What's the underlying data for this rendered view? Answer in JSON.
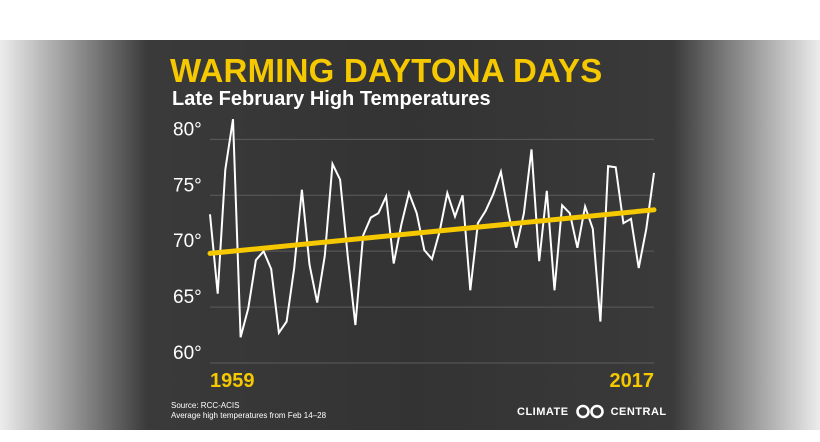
{
  "chart_data": {
    "type": "line",
    "title": "WARMING DAYTONA DAYS",
    "subtitle": "Late February High Temperatures",
    "xlabel": "",
    "ylabel": "",
    "x_start_label": "1959",
    "x_end_label": "2017",
    "xlim": [
      1959,
      2017
    ],
    "ylim": [
      60,
      82
    ],
    "yticks": [
      80,
      75,
      70,
      65,
      60
    ],
    "ytick_labels": [
      "80°",
      "75°",
      "70°",
      "65°",
      "60°"
    ],
    "grid": true,
    "series": [
      {
        "name": "Average high temperature",
        "color": "#ffffff",
        "x": [
          1959,
          1960,
          1961,
          1962,
          1963,
          1964,
          1965,
          1966,
          1967,
          1968,
          1969,
          1970,
          1971,
          1972,
          1973,
          1974,
          1975,
          1976,
          1977,
          1978,
          1979,
          1980,
          1981,
          1982,
          1983,
          1984,
          1985,
          1986,
          1987,
          1988,
          1989,
          1990,
          1991,
          1992,
          1993,
          1994,
          1995,
          1996,
          1997,
          1998,
          1999,
          2000,
          2001,
          2002,
          2003,
          2004,
          2005,
          2006,
          2007,
          2008,
          2009,
          2010,
          2011,
          2012,
          2013,
          2014,
          2015,
          2016,
          2017
        ],
        "values": [
          73.3,
          66.2,
          77.3,
          81.8,
          62.3,
          64.9,
          69.2,
          70.0,
          68.4,
          62.7,
          63.7,
          68.5,
          75.5,
          68.8,
          65.4,
          69.6,
          77.8,
          76.4,
          69.5,
          63.4,
          71.4,
          73.0,
          73.4,
          74.9,
          68.9,
          72.4,
          75.2,
          73.4,
          70.1,
          69.3,
          71.8,
          75.2,
          73.1,
          75.0,
          66.5,
          72.5,
          73.6,
          75.1,
          77.1,
          73.3,
          70.3,
          73.4,
          79.1,
          69.1,
          75.4,
          66.5,
          74.1,
          73.4,
          70.3,
          74.0,
          72.0,
          63.7,
          77.6,
          77.5,
          72.5,
          72.9,
          68.5,
          72.0,
          77.0
        ]
      },
      {
        "name": "Trend",
        "color": "#f5c800",
        "x": [
          1959,
          2017
        ],
        "values": [
          69.8,
          73.7
        ]
      }
    ]
  },
  "source": {
    "line1": "Source: RCC-ACIS",
    "line2": "Average high temperatures from Feb 14–28"
  },
  "logo": {
    "left_text": "CLIMATE",
    "right_text": "CENTRAL"
  },
  "colors": {
    "accent": "#f5c800",
    "background": "#333333",
    "line": "#ffffff",
    "grid": "#5c5c5c"
  }
}
